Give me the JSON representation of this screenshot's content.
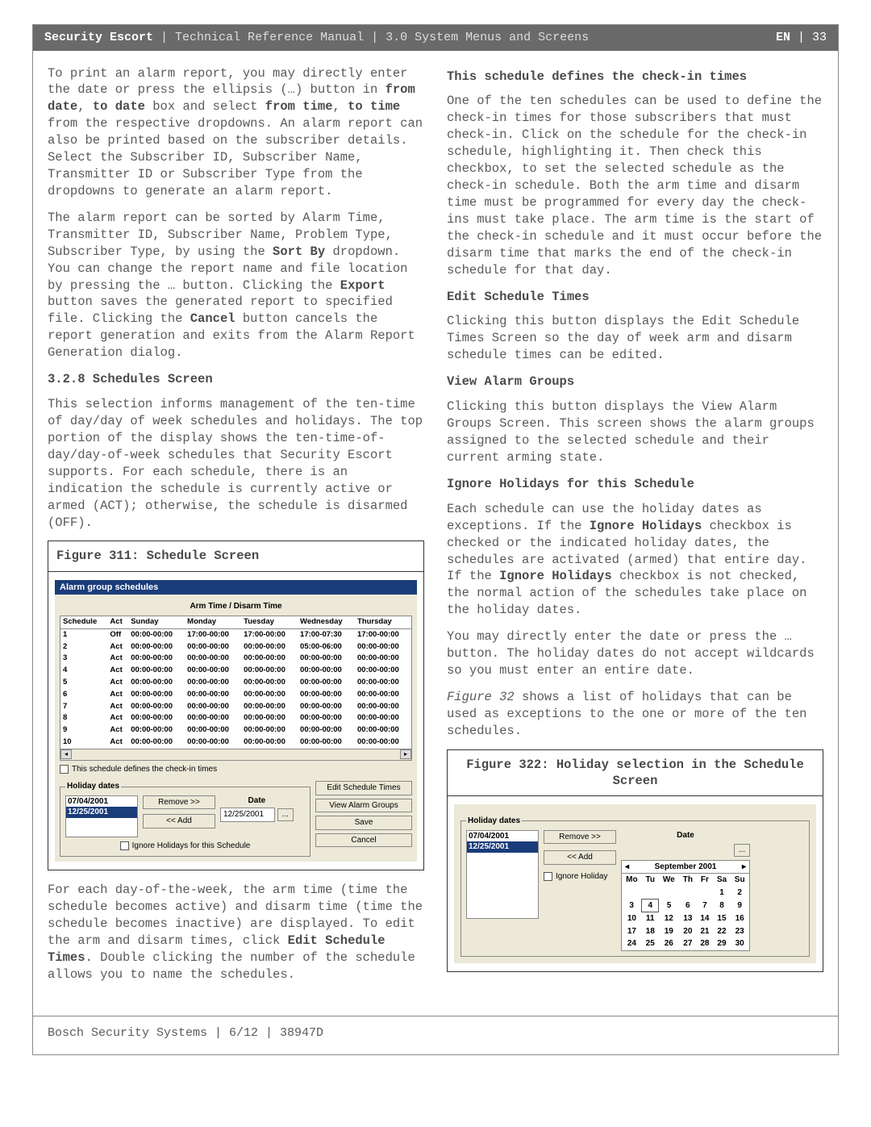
{
  "header": {
    "product": "Security Escort",
    "sep1": " | ",
    "subtitle": "Technical Reference Manual | 3.0  System Menus and Screens",
    "lang": "EN",
    "page_sep": " | ",
    "page_num": "33"
  },
  "left": {
    "p1a": "To print an alarm report, you may directly enter the date or press the ellipsis (…) button in ",
    "p1b1": "from date",
    "p1b2": ", ",
    "p1b3": "to date",
    "p1c": " box and select ",
    "p1d1": "from time",
    "p1d2": ", ",
    "p1d3": "to time",
    "p1e": " from the respective dropdowns. An alarm report can also be printed based on the subscriber details. Select the Subscriber ID, Subscriber Name, Transmitter ID or Subscriber Type from the dropdowns to generate an alarm report.",
    "p2a": "The alarm report can be sorted by Alarm Time, Transmitter ID, Subscriber Name, Problem Type, Subscriber Type, by using the ",
    "p2b": "Sort By",
    "p2c": " dropdown. You can change the report name and file location by pressing the … button. Clicking the ",
    "p2d": "Export",
    "p2e": " button saves the generated report to specified file. Clicking the ",
    "p2f": "Cancel",
    "p2g": " button cancels the report generation and exits from the Alarm Report Generation dialog.",
    "h328": "3.2.8 Schedules Screen",
    "p3": "This selection informs management of the ten-time of day/day of week schedules and holidays. The top portion of the display shows the ten-time-of-day/day-of-week schedules that Security Escort supports. For each schedule, there is an indication the schedule is currently active or armed (ACT); otherwise, the schedule is disarmed (OFF).",
    "fig31_caption": "Figure 311: Schedule Screen",
    "p4a": "For each day-of-the-week, the arm time (time the schedule becomes active) and disarm time (time the schedule becomes inactive) are displayed. To edit the arm and disarm times, click ",
    "p4b": "Edit Schedule Times",
    "p4c": ". Double clicking the number of the schedule allows you to name the schedules."
  },
  "right": {
    "h_checkin": "This schedule defines the check-in times",
    "p_checkin": "One of the ten schedules can be used to define the check-in times for those subscribers that must check-in. Click on the schedule for the check-in schedule, highlighting it. Then check this checkbox, to set the selected schedule as the check-in schedule. Both the arm time and disarm time must be programmed for every day the check-ins must take place. The arm time is the start of the check-in schedule and it must occur before the disarm time that marks the end of the check-in schedule for that day.",
    "h_edit": "Edit Schedule Times",
    "p_edit": "Clicking this button displays the Edit Schedule Times Screen so the day of week arm and disarm schedule times can be edited.",
    "h_view": "View Alarm Groups",
    "p_view": "Clicking this button displays the View Alarm Groups Screen. This screen shows the alarm groups assigned to the selected schedule and their current arming state.",
    "h_ignore": "Ignore Holidays for this Schedule",
    "p_ignore_a": "Each schedule can use the holiday dates as exceptions. If the ",
    "p_ignore_b": "Ignore Holidays",
    "p_ignore_c": " checkbox is checked or the indicated holiday dates, the schedules are activated (armed) that entire day. If the ",
    "p_ignore_d": "Ignore Holidays",
    "p_ignore_e": " checkbox is not checked, the normal action of the schedules take place on the holiday dates.",
    "p_ignore2": "You may directly enter the date or press the … button. The holiday dates do not accept wildcards so you must enter an entire date.",
    "p_fig32ref_a": "Figure 32",
    "p_fig32ref_b": " shows a list of holidays that can be used as exceptions to the one or more of the ten schedules.",
    "fig32_caption": "Figure 322: Holiday selection in the Schedule Screen"
  },
  "fig31": {
    "titlebar": "Alarm group schedules",
    "header_row": "Arm Time / Disarm Time",
    "cols": [
      "Schedule",
      "Act",
      "Sunday",
      "Monday",
      "Tuesday",
      "Wednesday",
      "Thursday"
    ],
    "rows": [
      [
        "1",
        "Off",
        "00:00-00:00",
        "17:00-00:00",
        "17:00-00:00",
        "17:00-07:30",
        "17:00-00:00"
      ],
      [
        "2",
        "Act",
        "00:00-00:00",
        "00:00-00:00",
        "00:00-00:00",
        "05:00-06:00",
        "00:00-00:00"
      ],
      [
        "3",
        "Act",
        "00:00-00:00",
        "00:00-00:00",
        "00:00-00:00",
        "00:00-00:00",
        "00:00-00:00"
      ],
      [
        "4",
        "Act",
        "00:00-00:00",
        "00:00-00:00",
        "00:00-00:00",
        "00:00-00:00",
        "00:00-00:00"
      ],
      [
        "5",
        "Act",
        "00:00-00:00",
        "00:00-00:00",
        "00:00-00:00",
        "00:00-00:00",
        "00:00-00:00"
      ],
      [
        "6",
        "Act",
        "00:00-00:00",
        "00:00-00:00",
        "00:00-00:00",
        "00:00-00:00",
        "00:00-00:00"
      ],
      [
        "7",
        "Act",
        "00:00-00:00",
        "00:00-00:00",
        "00:00-00:00",
        "00:00-00:00",
        "00:00-00:00"
      ],
      [
        "8",
        "Act",
        "00:00-00:00",
        "00:00-00:00",
        "00:00-00:00",
        "00:00-00:00",
        "00:00-00:00"
      ],
      [
        "9",
        "Act",
        "00:00-00:00",
        "00:00-00:00",
        "00:00-00:00",
        "00:00-00:00",
        "00:00-00:00"
      ],
      [
        "10",
        "Act",
        "00:00-00:00",
        "00:00-00:00",
        "00:00-00:00",
        "00:00-00:00",
        "00:00-00:00"
      ]
    ],
    "chk_checkin": "This schedule defines the check-in times",
    "legend_holiday": "Holiday dates",
    "holidays": [
      "07/04/2001",
      "12/25/2001"
    ],
    "btn_remove": "Remove >>",
    "btn_add": "<< Add",
    "lbl_date": "Date",
    "date_val": "12/25/2001",
    "ellipsis": "...",
    "chk_ignore": "Ignore Holidays for this Schedule",
    "btn_edit": "Edit Schedule Times",
    "btn_view": "View Alarm Groups",
    "btn_save": "Save",
    "btn_cancel": "Cancel"
  },
  "fig32": {
    "legend_holiday": "Holiday dates",
    "holidays": [
      "07/04/2001",
      "12/25/2001"
    ],
    "btn_remove": "Remove >>",
    "btn_add": "<< Add",
    "lbl_date": "Date",
    "ellipsis": "...",
    "chk_ignore": "Ignore Holiday",
    "cal_month": "September 2001",
    "cal_dow": [
      "Mo",
      "Tu",
      "We",
      "Th",
      "Fr",
      "Sa",
      "Su"
    ],
    "cal_weeks": [
      [
        "",
        "",
        "",
        "",
        "",
        "1",
        "2"
      ],
      [
        "3",
        "4",
        "5",
        "6",
        "7",
        "8",
        "9"
      ],
      [
        "10",
        "11",
        "12",
        "13",
        "14",
        "15",
        "16"
      ],
      [
        "17",
        "18",
        "19",
        "20",
        "21",
        "22",
        "23"
      ],
      [
        "24",
        "25",
        "26",
        "27",
        "28",
        "29",
        "30"
      ]
    ],
    "cal_boxed_day": "4",
    "arrow_l": "◂",
    "arrow_r": "▸"
  },
  "footer": {
    "text": "Bosch Security Systems | 6/12 | 38947D"
  },
  "colors": {
    "header_bg": "#6a6a6a",
    "dialog_bg": "#ece9d8",
    "titlebar_bg": "#1a3c7a"
  }
}
